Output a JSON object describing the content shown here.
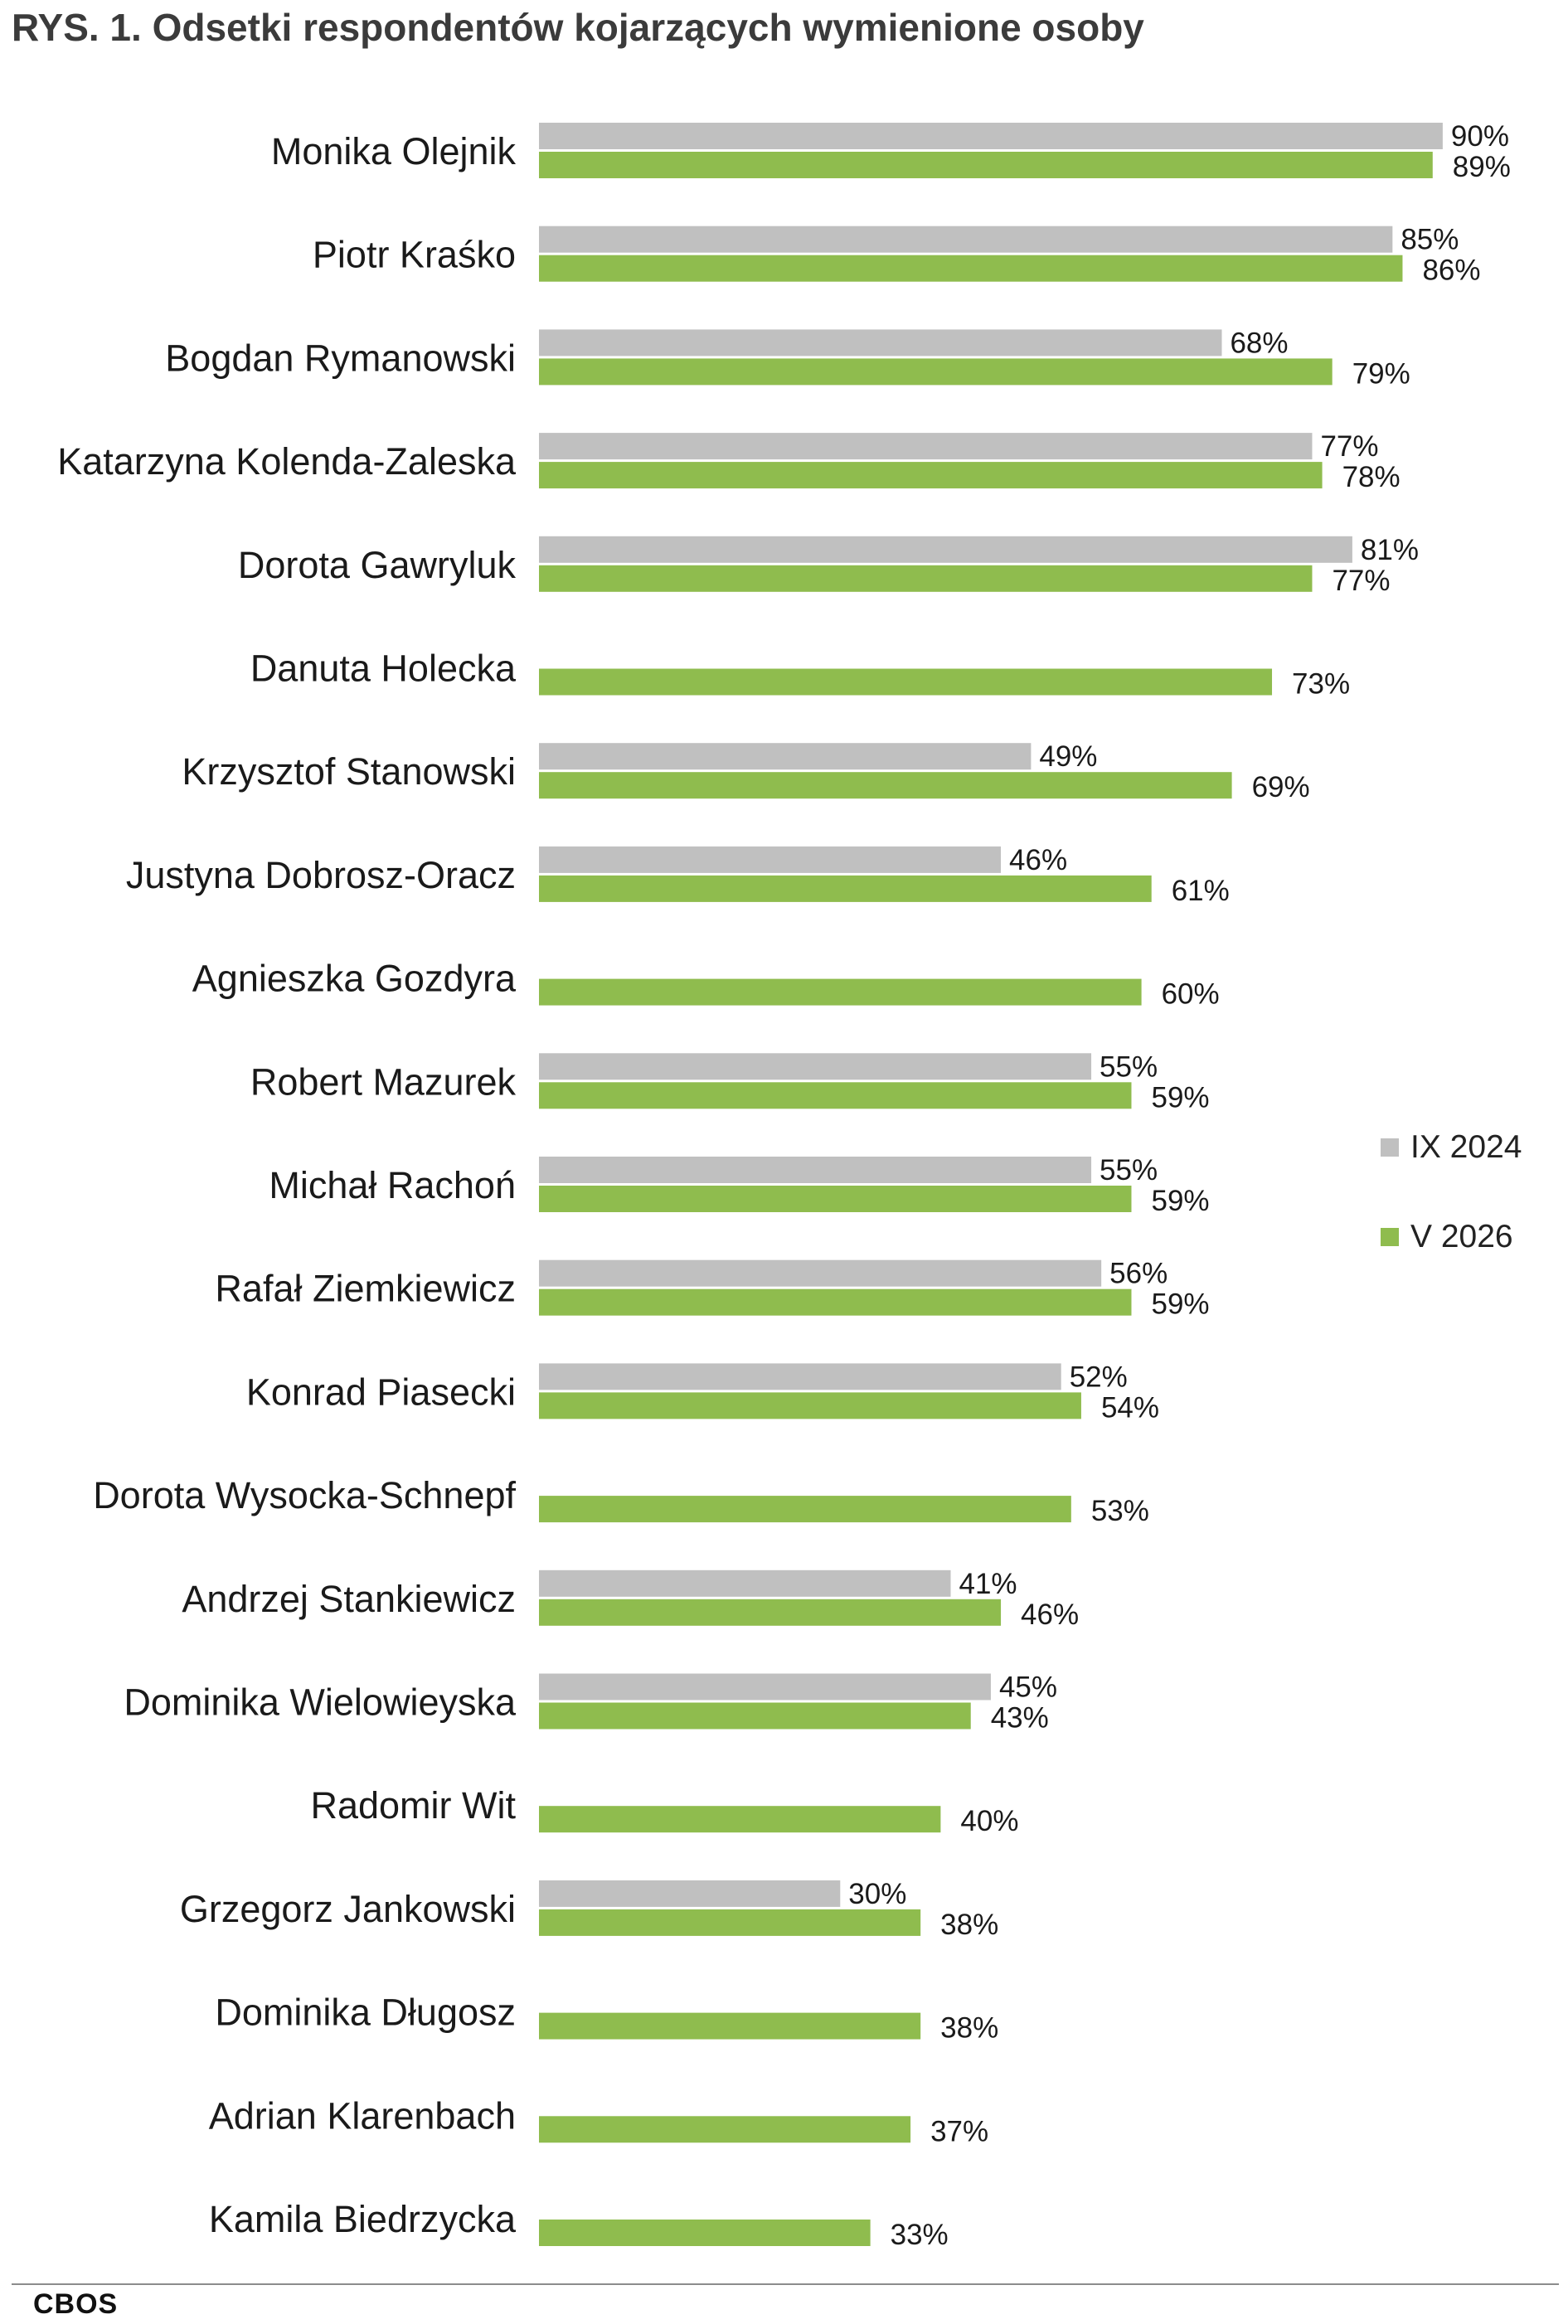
{
  "title": "RYS. 1. Odsetki respondentów kojarzących wymienione osoby",
  "source": "CBOS",
  "colors": {
    "series_1": "#c0c0c0",
    "series_2": "#8fbc4e"
  },
  "chart_data": {
    "type": "bar",
    "orientation": "horizontal",
    "title": "RYS. 1. Odsetki respondentów kojarzących wymienione osoby",
    "xlim": [
      0,
      100
    ],
    "grid": false,
    "legend": "right",
    "value_suffix": "%",
    "categories": [
      "Monika Olejnik",
      "Piotr Kraśko",
      "Bogdan Rymanowski",
      "Katarzyna Kolenda-Zaleska",
      "Dorota Gawryluk",
      "Danuta Holecka",
      "Krzysztof Stanowski",
      "Justyna Dobrosz-Oracz",
      "Agnieszka Gozdyra",
      "Robert Mazurek",
      "Michał Rachoń",
      "Rafał Ziemkiewicz",
      "Konrad Piasecki",
      "Dorota Wysocka-Schnepf",
      "Andrzej Stankiewicz",
      "Dominika Wielowieyska",
      "Radomir Wit",
      "Grzegorz Jankowski",
      "Dominika Długosz",
      "Adrian Klarenbach",
      "Kamila Biedrzycka"
    ],
    "series": [
      {
        "name": "IX 2024",
        "color": "#c0c0c0",
        "values": [
          90,
          85,
          68,
          77,
          81,
          null,
          49,
          46,
          null,
          55,
          55,
          56,
          52,
          null,
          41,
          45,
          null,
          30,
          null,
          null,
          null
        ]
      },
      {
        "name": "V 2026",
        "color": "#8fbc4e",
        "values": [
          89,
          86,
          79,
          78,
          77,
          73,
          69,
          61,
          60,
          59,
          59,
          59,
          54,
          53,
          46,
          43,
          40,
          38,
          38,
          37,
          33
        ]
      }
    ]
  }
}
